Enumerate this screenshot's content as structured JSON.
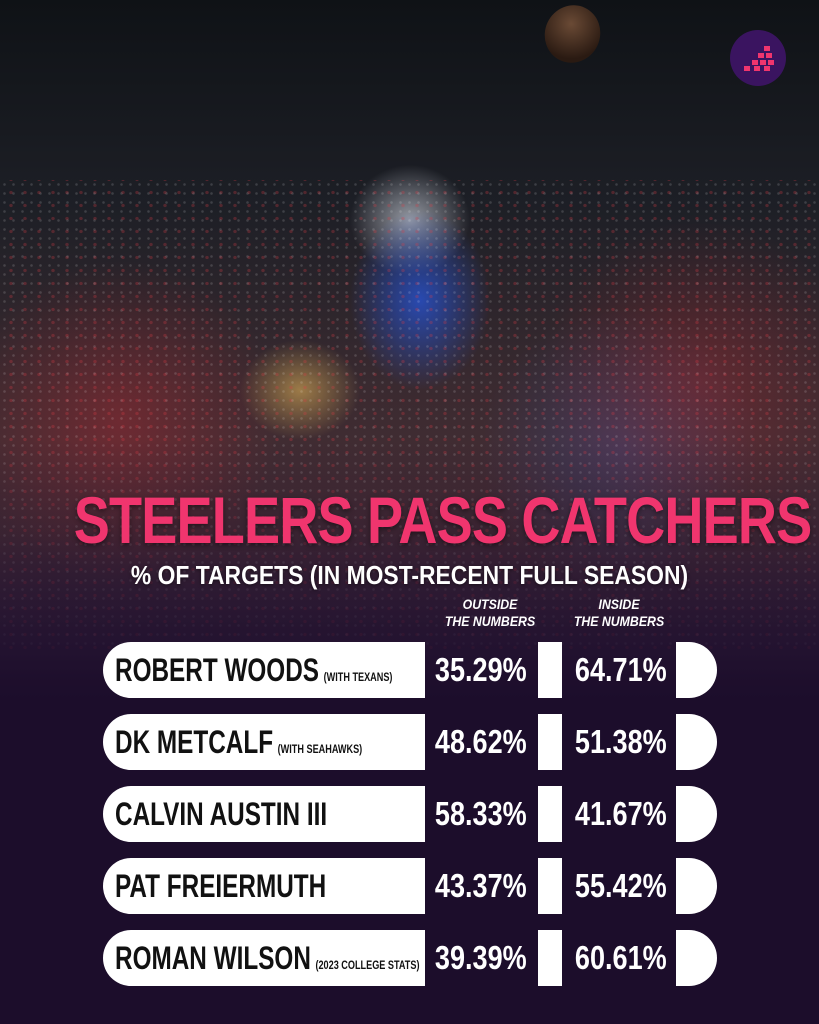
{
  "title": "STEELERS PASS CATCHERS",
  "subtitle": "% OF TARGETS (IN MOST-RECENT FULL SEASON)",
  "columns": [
    {
      "line1": "OUTSIDE",
      "line2": "THE NUMBERS"
    },
    {
      "line1": "INSIDE",
      "line2": "THE NUMBERS"
    }
  ],
  "rows": [
    {
      "name": "ROBERT WOODS",
      "note": "(WITH TEXANS)",
      "outside": "35.29%",
      "inside": "64.71%"
    },
    {
      "name": "DK METCALF",
      "note": "(WITH SEAHAWKS)",
      "outside": "48.62%",
      "inside": "51.38%"
    },
    {
      "name": "CALVIN AUSTIN III",
      "note": "",
      "outside": "58.33%",
      "inside": "41.67%"
    },
    {
      "name": "PAT FREIERMUTH",
      "note": "",
      "outside": "43.37%",
      "inside": "55.42%"
    },
    {
      "name": "ROMAN WILSON",
      "note": "(2023 COLLEGE STATS)",
      "outside": "39.39%",
      "inside": "60.61%"
    }
  ],
  "colors": {
    "accent": "#f0356e",
    "background": "#1c0d2b",
    "pill": "#ffffff"
  }
}
